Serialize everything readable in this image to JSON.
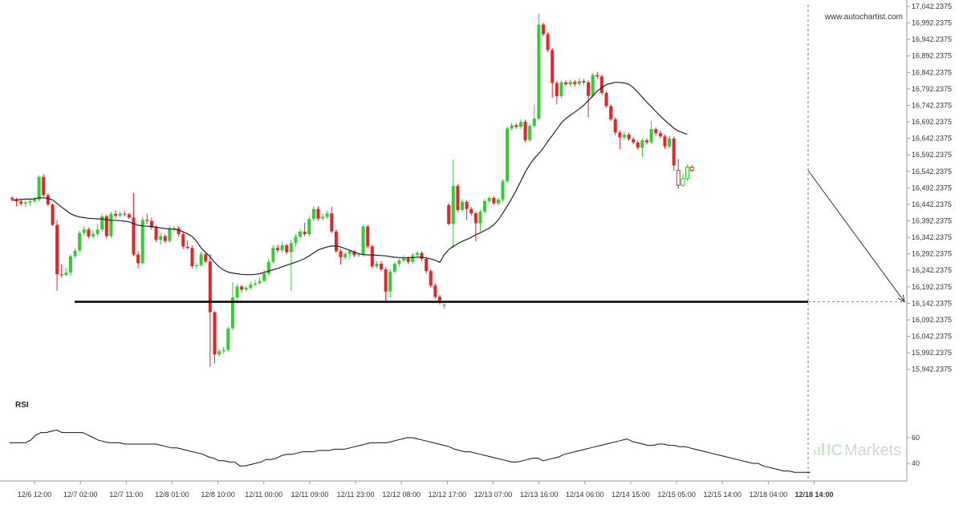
{
  "watermark": "www.autochartist.com",
  "brand": {
    "prefix": "IC",
    "suffix": "Markets"
  },
  "chart_data": {
    "type": "candlestick",
    "price_axis": {
      "range": [
        15917.2375,
        17042.2375
      ],
      "ticks": [
        "17,042.2375",
        "16,992.2375",
        "16,942.2375",
        "16,892.2375",
        "16,842.2375",
        "16,792.2375",
        "16,742.2375",
        "16,692.2375",
        "16,642.2375",
        "16,592.2375",
        "16,542.2375",
        "16,492.2375",
        "16,442.2375",
        "16,392.2375",
        "16,342.2375",
        "16,292.2375",
        "16,242.2375",
        "16,192.2375",
        "16,142.2375",
        "16,092.2375",
        "16,042.2375",
        "15,992.2375",
        "15,942.2375"
      ]
    },
    "time_axis": {
      "labels": [
        "12/6 12:00",
        "12/7 02:00",
        "12/7 11:00",
        "12/8 01:00",
        "12/8 10:00",
        "12/11 00:00",
        "12/11 09:00",
        "12/11 23:00",
        "12/12 08:00",
        "12/12 17:00",
        "12/13 07:00",
        "12/13 16:00",
        "12/14 06:00",
        "12/14 15:00",
        "12/15 05:00",
        "12/15 14:00",
        "12/18 04:00",
        "12/18 14:00"
      ],
      "current_label": "12/18 14:00"
    },
    "support_level": 16147,
    "forecast_target": 16147,
    "candles": [
      {
        "o": 16462,
        "c": 16458,
        "h": 16467,
        "l": 16452
      },
      {
        "o": 16458,
        "c": 16451,
        "h": 16462,
        "l": 16436
      },
      {
        "o": 16451,
        "c": 16444,
        "h": 16457,
        "l": 16438
      },
      {
        "o": 16444,
        "c": 16448,
        "h": 16454,
        "l": 16433
      },
      {
        "o": 16448,
        "c": 16452,
        "h": 16459,
        "l": 16437
      },
      {
        "o": 16452,
        "c": 16457,
        "h": 16464,
        "l": 16446
      },
      {
        "o": 16457,
        "c": 16525,
        "h": 16530,
        "l": 16450
      },
      {
        "o": 16525,
        "c": 16470,
        "h": 16534,
        "l": 16465
      },
      {
        "o": 16470,
        "c": 16442,
        "h": 16476,
        "l": 16436
      },
      {
        "o": 16442,
        "c": 16380,
        "h": 16445,
        "l": 16376
      },
      {
        "o": 16380,
        "c": 16230,
        "h": 16394,
        "l": 16180
      },
      {
        "o": 16230,
        "c": 16228,
        "h": 16260,
        "l": 16220
      },
      {
        "o": 16228,
        "c": 16235,
        "h": 16250,
        "l": 16225
      },
      {
        "o": 16235,
        "c": 16285,
        "h": 16291,
        "l": 16225
      },
      {
        "o": 16285,
        "c": 16302,
        "h": 16310,
        "l": 16278
      },
      {
        "o": 16302,
        "c": 16355,
        "h": 16362,
        "l": 16296
      },
      {
        "o": 16355,
        "c": 16366,
        "h": 16376,
        "l": 16348
      },
      {
        "o": 16366,
        "c": 16345,
        "h": 16372,
        "l": 16339
      },
      {
        "o": 16345,
        "c": 16352,
        "h": 16361,
        "l": 16339
      },
      {
        "o": 16352,
        "c": 16366,
        "h": 16382,
        "l": 16345
      },
      {
        "o": 16366,
        "c": 16406,
        "h": 16414,
        "l": 16360
      },
      {
        "o": 16406,
        "c": 16346,
        "h": 16411,
        "l": 16339
      },
      {
        "o": 16346,
        "c": 16413,
        "h": 16420,
        "l": 16341
      },
      {
        "o": 16413,
        "c": 16408,
        "h": 16424,
        "l": 16400
      },
      {
        "o": 16408,
        "c": 16414,
        "h": 16421,
        "l": 16403
      },
      {
        "o": 16414,
        "c": 16412,
        "h": 16423,
        "l": 16405
      },
      {
        "o": 16412,
        "c": 16402,
        "h": 16417,
        "l": 16397
      },
      {
        "o": 16402,
        "c": 16290,
        "h": 16477,
        "l": 16285
      },
      {
        "o": 16290,
        "c": 16264,
        "h": 16300,
        "l": 16248
      },
      {
        "o": 16264,
        "c": 16395,
        "h": 16405,
        "l": 16260
      },
      {
        "o": 16395,
        "c": 16392,
        "h": 16414,
        "l": 16384
      },
      {
        "o": 16392,
        "c": 16372,
        "h": 16402,
        "l": 16365
      },
      {
        "o": 16372,
        "c": 16335,
        "h": 16378,
        "l": 16328
      },
      {
        "o": 16335,
        "c": 16346,
        "h": 16356,
        "l": 16320
      },
      {
        "o": 16346,
        "c": 16331,
        "h": 16352,
        "l": 16325
      },
      {
        "o": 16331,
        "c": 16368,
        "h": 16376,
        "l": 16325
      },
      {
        "o": 16368,
        "c": 16370,
        "h": 16377,
        "l": 16360
      },
      {
        "o": 16370,
        "c": 16352,
        "h": 16376,
        "l": 16344
      },
      {
        "o": 16352,
        "c": 16314,
        "h": 16358,
        "l": 16307
      },
      {
        "o": 16314,
        "c": 16310,
        "h": 16333,
        "l": 16305
      },
      {
        "o": 16310,
        "c": 16255,
        "h": 16318,
        "l": 16248
      },
      {
        "o": 16255,
        "c": 16258,
        "h": 16264,
        "l": 16246
      },
      {
        "o": 16258,
        "c": 16291,
        "h": 16298,
        "l": 16253
      },
      {
        "o": 16291,
        "c": 16269,
        "h": 16296,
        "l": 16264
      },
      {
        "o": 16269,
        "c": 16115,
        "h": 16292,
        "l": 15950
      },
      {
        "o": 16115,
        "c": 15987,
        "h": 16120,
        "l": 15960
      },
      {
        "o": 15987,
        "c": 15997,
        "h": 16005,
        "l": 15980
      },
      {
        "o": 15997,
        "c": 16001,
        "h": 16010,
        "l": 15990
      },
      {
        "o": 16001,
        "c": 16066,
        "h": 16072,
        "l": 15995
      },
      {
        "o": 16066,
        "c": 16160,
        "h": 16206,
        "l": 16060
      },
      {
        "o": 16160,
        "c": 16193,
        "h": 16200,
        "l": 16142
      },
      {
        "o": 16193,
        "c": 16184,
        "h": 16199,
        "l": 16174
      },
      {
        "o": 16184,
        "c": 16189,
        "h": 16196,
        "l": 16178
      },
      {
        "o": 16189,
        "c": 16199,
        "h": 16208,
        "l": 16184
      },
      {
        "o": 16199,
        "c": 16203,
        "h": 16212,
        "l": 16194
      },
      {
        "o": 16203,
        "c": 16210,
        "h": 16221,
        "l": 16198
      },
      {
        "o": 16210,
        "c": 16232,
        "h": 16244,
        "l": 16205
      },
      {
        "o": 16232,
        "c": 16268,
        "h": 16278,
        "l": 16225
      },
      {
        "o": 16268,
        "c": 16310,
        "h": 16318,
        "l": 16262
      },
      {
        "o": 16310,
        "c": 16303,
        "h": 16320,
        "l": 16296
      },
      {
        "o": 16303,
        "c": 16318,
        "h": 16330,
        "l": 16296
      },
      {
        "o": 16318,
        "c": 16297,
        "h": 16323,
        "l": 16291
      },
      {
        "o": 16297,
        "c": 16325,
        "h": 16335,
        "l": 16180
      },
      {
        "o": 16325,
        "c": 16344,
        "h": 16352,
        "l": 16315
      },
      {
        "o": 16344,
        "c": 16360,
        "h": 16368,
        "l": 16336
      },
      {
        "o": 16360,
        "c": 16352,
        "h": 16386,
        "l": 16346
      },
      {
        "o": 16352,
        "c": 16398,
        "h": 16405,
        "l": 16345
      },
      {
        "o": 16398,
        "c": 16428,
        "h": 16435,
        "l": 16392
      },
      {
        "o": 16428,
        "c": 16399,
        "h": 16436,
        "l": 16393
      },
      {
        "o": 16399,
        "c": 16404,
        "h": 16413,
        "l": 16394
      },
      {
        "o": 16404,
        "c": 16415,
        "h": 16424,
        "l": 16398
      },
      {
        "o": 16415,
        "c": 16360,
        "h": 16435,
        "l": 16354
      },
      {
        "o": 16360,
        "c": 16300,
        "h": 16366,
        "l": 16295
      },
      {
        "o": 16300,
        "c": 16282,
        "h": 16306,
        "l": 16260
      },
      {
        "o": 16282,
        "c": 16292,
        "h": 16298,
        "l": 16274
      },
      {
        "o": 16292,
        "c": 16300,
        "h": 16306,
        "l": 16276
      },
      {
        "o": 16300,
        "c": 16288,
        "h": 16305,
        "l": 16282
      },
      {
        "o": 16288,
        "c": 16290,
        "h": 16296,
        "l": 16282
      },
      {
        "o": 16290,
        "c": 16375,
        "h": 16380,
        "l": 16284
      },
      {
        "o": 16375,
        "c": 16315,
        "h": 16380,
        "l": 16309
      },
      {
        "o": 16315,
        "c": 16254,
        "h": 16320,
        "l": 16247
      },
      {
        "o": 16254,
        "c": 16262,
        "h": 16270,
        "l": 16248
      },
      {
        "o": 16262,
        "c": 16245,
        "h": 16270,
        "l": 16239
      },
      {
        "o": 16245,
        "c": 16178,
        "h": 16252,
        "l": 16150
      },
      {
        "o": 16178,
        "c": 16238,
        "h": 16246,
        "l": 16160
      },
      {
        "o": 16238,
        "c": 16262,
        "h": 16270,
        "l": 16232
      },
      {
        "o": 16262,
        "c": 16272,
        "h": 16278,
        "l": 16254
      },
      {
        "o": 16272,
        "c": 16278,
        "h": 16288,
        "l": 16267
      },
      {
        "o": 16278,
        "c": 16268,
        "h": 16285,
        "l": 16262
      },
      {
        "o": 16268,
        "c": 16288,
        "h": 16295,
        "l": 16262
      },
      {
        "o": 16288,
        "c": 16295,
        "h": 16301,
        "l": 16282
      },
      {
        "o": 16295,
        "c": 16277,
        "h": 16300,
        "l": 16270
      },
      {
        "o": 16277,
        "c": 16240,
        "h": 16283,
        "l": 16232
      },
      {
        "o": 16240,
        "c": 16196,
        "h": 16246,
        "l": 16190
      },
      {
        "o": 16196,
        "c": 16162,
        "h": 16202,
        "l": 16155
      },
      {
        "o": 16162,
        "c": 16145,
        "h": 16168,
        "l": 16138
      },
      {
        "o": 16135,
        "c": 16138,
        "h": 16142,
        "l": 16125
      },
      {
        "o": 16440,
        "c": 16383,
        "h": 16446,
        "l": 16378
      },
      {
        "o": 16383,
        "c": 16498,
        "h": 16578,
        "l": 16310
      },
      {
        "o": 16498,
        "c": 16425,
        "h": 16504,
        "l": 16419
      },
      {
        "o": 16425,
        "c": 16450,
        "h": 16458,
        "l": 16419
      },
      {
        "o": 16450,
        "c": 16428,
        "h": 16456,
        "l": 16395
      },
      {
        "o": 16428,
        "c": 16415,
        "h": 16434,
        "l": 16408
      },
      {
        "o": 16415,
        "c": 16385,
        "h": 16421,
        "l": 16330
      },
      {
        "o": 16385,
        "c": 16420,
        "h": 16426,
        "l": 16360
      },
      {
        "o": 16420,
        "c": 16452,
        "h": 16458,
        "l": 16414
      },
      {
        "o": 16452,
        "c": 16462,
        "h": 16468,
        "l": 16446
      },
      {
        "o": 16462,
        "c": 16445,
        "h": 16468,
        "l": 16439
      },
      {
        "o": 16445,
        "c": 16457,
        "h": 16463,
        "l": 16439
      },
      {
        "o": 16457,
        "c": 16512,
        "h": 16518,
        "l": 16451
      },
      {
        "o": 16512,
        "c": 16672,
        "h": 16678,
        "l": 16506
      },
      {
        "o": 16672,
        "c": 16682,
        "h": 16690,
        "l": 16666
      },
      {
        "o": 16682,
        "c": 16677,
        "h": 16688,
        "l": 16671
      },
      {
        "o": 16677,
        "c": 16692,
        "h": 16700,
        "l": 16671
      },
      {
        "o": 16692,
        "c": 16637,
        "h": 16698,
        "l": 16631
      },
      {
        "o": 16637,
        "c": 16680,
        "h": 16686,
        "l": 16631
      },
      {
        "o": 16680,
        "c": 16702,
        "h": 16745,
        "l": 16672
      },
      {
        "o": 16702,
        "c": 16987,
        "h": 17020,
        "l": 16696
      },
      {
        "o": 16987,
        "c": 16958,
        "h": 16993,
        "l": 16952
      },
      {
        "o": 16958,
        "c": 16910,
        "h": 16964,
        "l": 16904
      },
      {
        "o": 16910,
        "c": 16810,
        "h": 16916,
        "l": 16765
      },
      {
        "o": 16810,
        "c": 16770,
        "h": 16816,
        "l": 16745
      },
      {
        "o": 16770,
        "c": 16812,
        "h": 16820,
        "l": 16764
      },
      {
        "o": 16812,
        "c": 16806,
        "h": 16818,
        "l": 16800
      },
      {
        "o": 16806,
        "c": 16813,
        "h": 16820,
        "l": 16800
      },
      {
        "o": 16813,
        "c": 16807,
        "h": 16819,
        "l": 16800
      },
      {
        "o": 16807,
        "c": 16816,
        "h": 16824,
        "l": 16801
      },
      {
        "o": 16816,
        "c": 16812,
        "h": 16822,
        "l": 16806
      },
      {
        "o": 16812,
        "c": 16771,
        "h": 16818,
        "l": 16706
      },
      {
        "o": 16771,
        "c": 16834,
        "h": 16840,
        "l": 16765
      },
      {
        "o": 16834,
        "c": 16830,
        "h": 16844,
        "l": 16823
      },
      {
        "o": 16830,
        "c": 16780,
        "h": 16836,
        "l": 16774
      },
      {
        "o": 16780,
        "c": 16740,
        "h": 16786,
        "l": 16734
      },
      {
        "o": 16740,
        "c": 16700,
        "h": 16746,
        "l": 16694
      },
      {
        "o": 16700,
        "c": 16660,
        "h": 16706,
        "l": 16652
      },
      {
        "o": 16660,
        "c": 16645,
        "h": 16666,
        "l": 16610
      },
      {
        "o": 16645,
        "c": 16654,
        "h": 16662,
        "l": 16638
      },
      {
        "o": 16654,
        "c": 16640,
        "h": 16660,
        "l": 16634
      },
      {
        "o": 16640,
        "c": 16630,
        "h": 16646,
        "l": 16624
      },
      {
        "o": 16630,
        "c": 16614,
        "h": 16636,
        "l": 16608
      },
      {
        "o": 16614,
        "c": 16636,
        "h": 16642,
        "l": 16586
      },
      {
        "o": 16636,
        "c": 16630,
        "h": 16642,
        "l": 16624
      },
      {
        "o": 16630,
        "c": 16670,
        "h": 16695,
        "l": 16624
      },
      {
        "o": 16670,
        "c": 16658,
        "h": 16676,
        "l": 16650
      },
      {
        "o": 16658,
        "c": 16648,
        "h": 16666,
        "l": 16642
      },
      {
        "o": 16648,
        "c": 16618,
        "h": 16654,
        "l": 16610
      },
      {
        "o": 16618,
        "c": 16642,
        "h": 16650,
        "l": 16612
      },
      {
        "o": 16642,
        "c": 16560,
        "h": 16648,
        "l": 16544
      },
      {
        "o": 16545,
        "c": 16500,
        "h": 16580,
        "l": 16490
      },
      {
        "o": 16500,
        "c": 16520,
        "h": 16535,
        "l": 16495
      },
      {
        "o": 16520,
        "c": 16555,
        "h": 16562,
        "l": 16514
      },
      {
        "o": 16555,
        "c": 16545,
        "h": 16562,
        "l": 16540
      }
    ],
    "ma": [
      16455,
      16456,
      16457,
      16458,
      16458,
      16459,
      16462,
      16462,
      16460,
      16456,
      16445,
      16434,
      16424,
      16414,
      16408,
      16404,
      16402,
      16400,
      16399,
      16398,
      16398,
      16396,
      16394,
      16394,
      16393,
      16391,
      16389,
      16384,
      16379,
      16377,
      16376,
      16375,
      16373,
      16371,
      16369,
      16368,
      16367,
      16364,
      16359,
      16353,
      16345,
      16330,
      16310,
      16297,
      16283,
      16266,
      16253,
      16243,
      16237,
      16234,
      16232,
      16230,
      16229,
      16229,
      16230,
      16232,
      16236,
      16240,
      16244,
      16248,
      16253,
      16258,
      16262,
      16267,
      16272,
      16278,
      16286,
      16295,
      16304,
      16309,
      16313,
      16316,
      16316,
      16313,
      16308,
      16303,
      16297,
      16293,
      16290,
      16289,
      16289,
      16288,
      16287,
      16286,
      16284,
      16282,
      16281,
      16280,
      16280,
      16281,
      16282,
      16282,
      16280,
      16277,
      16273,
      16266,
      16290,
      16305,
      16315,
      16323,
      16330,
      16336,
      16342,
      16350,
      16356,
      16363,
      16370,
      16380,
      16395,
      16415,
      16437,
      16460,
      16485,
      16512,
      16540,
      16563,
      16582,
      16596,
      16613,
      16633,
      16651,
      16670,
      16689,
      16702,
      16712,
      16722,
      16732,
      16743,
      16757,
      16771,
      16786,
      16796,
      16805,
      16809,
      16812,
      16812,
      16810,
      16806,
      16796,
      16782,
      16767,
      16752,
      16738,
      16724,
      16710,
      16697,
      16685,
      16673,
      16665,
      16659,
      16655
    ],
    "rsi": {
      "label": "RSI",
      "ticks": [
        "60",
        "40"
      ],
      "range": [
        30,
        75
      ],
      "values": [
        56,
        56,
        56,
        56,
        58,
        62,
        64,
        64,
        65,
        66,
        64,
        64,
        64,
        64,
        64,
        62,
        60,
        58,
        57,
        56,
        56,
        56,
        55,
        55,
        55,
        55,
        55,
        55,
        55,
        54,
        53,
        52,
        52,
        51,
        50,
        49,
        48,
        47,
        45,
        44,
        42,
        42,
        41,
        41,
        38,
        38,
        39,
        40,
        41,
        43,
        43,
        44,
        46,
        47,
        47,
        48,
        49,
        49,
        49,
        50,
        50,
        50,
        51,
        51,
        51,
        52,
        53,
        54,
        55,
        56,
        56,
        56,
        56,
        57,
        58,
        59,
        60,
        60,
        59,
        58,
        57,
        56,
        55,
        54,
        53,
        51,
        50,
        49,
        49,
        48,
        47,
        46,
        45,
        44,
        43,
        42,
        41,
        41,
        42,
        43,
        44,
        44,
        42,
        43,
        44,
        45,
        47,
        48,
        49,
        50,
        51,
        52,
        53,
        54,
        55,
        56,
        57,
        58,
        59,
        57,
        56,
        55,
        54,
        54,
        55,
        55,
        54,
        54,
        53,
        53,
        52,
        51,
        50,
        49,
        48,
        47,
        46,
        45,
        44,
        43,
        42,
        41,
        40,
        40,
        38,
        37,
        36,
        35,
        34,
        34,
        33,
        33,
        33,
        33
      ]
    }
  }
}
